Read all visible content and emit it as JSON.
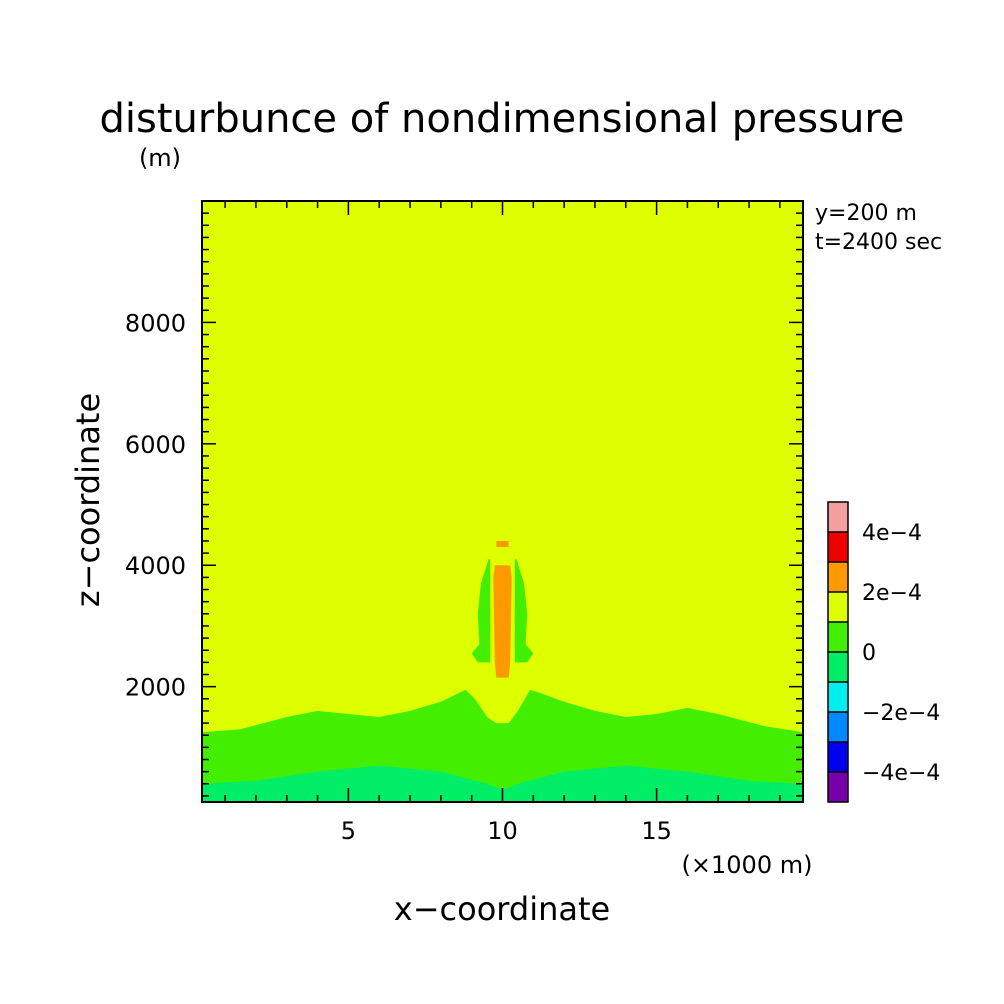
{
  "chart_data": {
    "type": "heatmap",
    "title": "disturbunce of nondimensional pressure",
    "y_unit_label": "(m)",
    "xlabel": "x−coordinate",
    "ylabel": "z−coordinate",
    "x_unit_label": "(×1000 m)",
    "info_lines": [
      "y=200 m",
      "t=2400 sec"
    ],
    "xlim": [
      0.25,
      19.75
    ],
    "ylim": [
      100,
      10000
    ],
    "x_ticks": [
      {
        "value": 5,
        "label": "5"
      },
      {
        "value": 10,
        "label": "10"
      },
      {
        "value": 15,
        "label": "15"
      }
    ],
    "y_ticks": [
      {
        "value": 2000,
        "label": "2000"
      },
      {
        "value": 4000,
        "label": "4000"
      },
      {
        "value": 6000,
        "label": "6000"
      },
      {
        "value": 8000,
        "label": "8000"
      }
    ],
    "x_minor_step": 1,
    "y_minor_step": 200,
    "colorbar": {
      "levels": [
        {
          "lower": -0.0005,
          "upper": -0.0004,
          "color": "#7700aa"
        },
        {
          "lower": -0.0004,
          "upper": -0.0003,
          "color": "#0000ee"
        },
        {
          "lower": -0.0003,
          "upper": -0.0002,
          "color": "#0088ff"
        },
        {
          "lower": -0.0002,
          "upper": -0.0001,
          "color": "#00eeee"
        },
        {
          "lower": -0.0001,
          "upper": 0,
          "color": "#00ee66"
        },
        {
          "lower": 0,
          "upper": 0.0001,
          "color": "#44ee00"
        },
        {
          "lower": 0.0001,
          "upper": 0.0002,
          "color": "#ddff00"
        },
        {
          "lower": 0.0002,
          "upper": 0.0003,
          "color": "#ff9900"
        },
        {
          "lower": 0.0003,
          "upper": 0.0004,
          "color": "#ee0000"
        },
        {
          "lower": 0.0004,
          "upper": 0.0005,
          "color": "#f5a0a0"
        }
      ],
      "tick_labels": [
        {
          "value": 0.0004,
          "label": "4e−4"
        },
        {
          "value": 0.0002,
          "label": "2e−4"
        },
        {
          "value": 0,
          "label": "0"
        },
        {
          "value": -0.0002,
          "label": "−2e−4"
        },
        {
          "value": -0.0004,
          "label": "−4e−4"
        }
      ]
    },
    "background_level_color": "#ddff00",
    "regions": [
      {
        "name": "green-band",
        "color": "#44ee00",
        "outline": [
          [
            0.25,
            1250
          ],
          [
            1.5,
            1300
          ],
          [
            3,
            1500
          ],
          [
            4,
            1600
          ],
          [
            5,
            1550
          ],
          [
            6,
            1500
          ],
          [
            7,
            1600
          ],
          [
            8,
            1750
          ],
          [
            8.8,
            1950
          ],
          [
            9.1,
            1800
          ],
          [
            9.5,
            1500
          ],
          [
            9.8,
            1400
          ],
          [
            10.2,
            1400
          ],
          [
            10.5,
            1600
          ],
          [
            10.9,
            1950
          ],
          [
            11.2,
            1900
          ],
          [
            12,
            1750
          ],
          [
            13,
            1600
          ],
          [
            14,
            1500
          ],
          [
            15,
            1550
          ],
          [
            16,
            1650
          ],
          [
            17,
            1550
          ],
          [
            18.5,
            1350
          ],
          [
            19.75,
            1250
          ],
          [
            19.75,
            100
          ],
          [
            0.25,
            100
          ]
        ]
      },
      {
        "name": "near-surface-band",
        "color": "#00ee66",
        "outline": [
          [
            0.25,
            400
          ],
          [
            2,
            450
          ],
          [
            4,
            600
          ],
          [
            6,
            700
          ],
          [
            8,
            600
          ],
          [
            9.5,
            400
          ],
          [
            10,
            300
          ],
          [
            10.5,
            400
          ],
          [
            12,
            600
          ],
          [
            14,
            700
          ],
          [
            16,
            600
          ],
          [
            18,
            450
          ],
          [
            19.75,
            400
          ],
          [
            19.75,
            100
          ],
          [
            0.25,
            100
          ]
        ]
      },
      {
        "name": "core-left-lobe",
        "color": "#44ee00",
        "outline": [
          [
            9.55,
            4100
          ],
          [
            9.3,
            3700
          ],
          [
            9.2,
            3200
          ],
          [
            9.25,
            2700
          ],
          [
            9.0,
            2550
          ],
          [
            9.2,
            2400
          ],
          [
            9.6,
            2400
          ],
          [
            9.6,
            4100
          ]
        ]
      },
      {
        "name": "core-right-lobe",
        "color": "#44ee00",
        "outline": [
          [
            10.45,
            4100
          ],
          [
            10.7,
            3700
          ],
          [
            10.8,
            3200
          ],
          [
            10.75,
            2700
          ],
          [
            11.0,
            2550
          ],
          [
            10.8,
            2400
          ],
          [
            10.4,
            2400
          ],
          [
            10.4,
            4100
          ]
        ]
      },
      {
        "name": "core-column",
        "color": "#ff9900",
        "outline": [
          [
            9.75,
            4000
          ],
          [
            10.25,
            4000
          ],
          [
            10.3,
            3800
          ],
          [
            10.25,
            2400
          ],
          [
            10.2,
            2150
          ],
          [
            9.8,
            2150
          ],
          [
            9.75,
            2400
          ],
          [
            9.7,
            3800
          ]
        ]
      },
      {
        "name": "core-cap",
        "color": "#ff9900",
        "outline": [
          [
            9.8,
            4400
          ],
          [
            10.2,
            4400
          ],
          [
            10.2,
            4300
          ],
          [
            9.8,
            4300
          ]
        ]
      }
    ]
  }
}
